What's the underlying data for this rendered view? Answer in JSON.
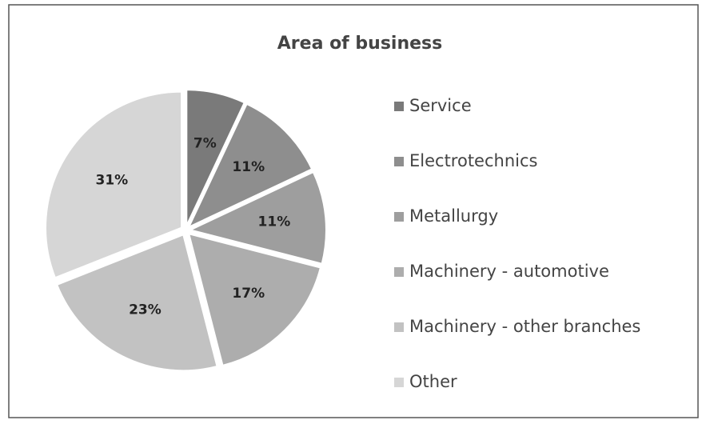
{
  "chart_data": {
    "type": "pie",
    "title": "Area of business",
    "categories": [
      "Service",
      "Electrotechnics",
      "Metallurgy",
      "Machinery - automotive",
      "Machinery - other branches",
      "Other"
    ],
    "values": [
      7,
      11,
      11,
      17,
      23,
      31
    ],
    "value_labels": [
      "7%",
      "11%",
      "11%",
      "17%",
      "23%",
      "31%"
    ],
    "colors": [
      "#7a7a7a",
      "#8e8e8e",
      "#9e9e9e",
      "#adadad",
      "#c2c2c2",
      "#d6d6d6"
    ],
    "legend": "right"
  }
}
